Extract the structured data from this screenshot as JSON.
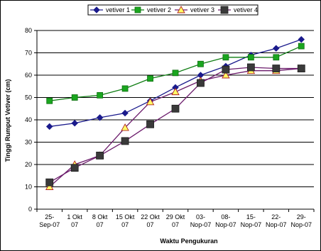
{
  "chart_data": {
    "type": "line",
    "xlabel": "Waktu Pengukuran",
    "ylabel": "Tinggi Rumput Vetiver (cm)",
    "ylim": [
      0,
      80
    ],
    "ytick_step": 10,
    "grid": true,
    "legend_position": "top",
    "categories": [
      [
        "25-",
        "Sep-07"
      ],
      [
        "1 Okt",
        "07"
      ],
      [
        "8 Okt",
        "07"
      ],
      [
        "15 Okt",
        "07"
      ],
      [
        "22 Okt",
        "07"
      ],
      [
        "29 Okt",
        "07"
      ],
      [
        "03-",
        "Nop-07"
      ],
      [
        "08-",
        "Nop-07"
      ],
      [
        "15-",
        "Nop-07"
      ],
      [
        "22-",
        "Nop-07"
      ],
      [
        "29-",
        "Nop-07"
      ]
    ],
    "series": [
      {
        "name": "vetiver 1",
        "color": "#1a1a8c",
        "marker": "diamond",
        "values": [
          37,
          38.5,
          41,
          43,
          48.5,
          54.5,
          60,
          64,
          69,
          72,
          76
        ]
      },
      {
        "name": "vetiver 2",
        "color": "#0e7d12",
        "marker": "square-green",
        "values": [
          48.5,
          50,
          51,
          54,
          58.5,
          61,
          65,
          68,
          68,
          68,
          73
        ]
      },
      {
        "name": "vetiver 3",
        "color": "#6b1b6b",
        "marker": "triangle",
        "values": [
          10,
          20,
          24,
          36.5,
          48,
          52.5,
          57.5,
          60,
          62,
          62,
          63
        ]
      },
      {
        "name": "vetiver 4",
        "color": "#6b1b6b",
        "marker": "square-dark",
        "values": [
          12,
          18.5,
          24,
          30.5,
          38,
          45,
          56.5,
          62.5,
          63.5,
          63,
          63
        ]
      }
    ]
  }
}
